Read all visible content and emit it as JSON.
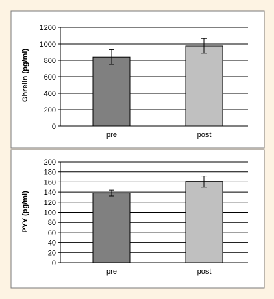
{
  "chart_data": [
    {
      "type": "bar",
      "categories": [
        "pre",
        "post"
      ],
      "values": [
        840,
        975
      ],
      "error": [
        90,
        90
      ],
      "ylabel": "Ghrelin (pg/ml)",
      "ylim": [
        0,
        1200
      ],
      "yticks": [
        0,
        200,
        400,
        600,
        800,
        1000,
        1200
      ],
      "bar_colors": [
        "#808080",
        "#c0c0c0"
      ],
      "grid": true
    },
    {
      "type": "bar",
      "categories": [
        "pre",
        "post"
      ],
      "values": [
        138,
        161
      ],
      "error": [
        6,
        11
      ],
      "ylabel": "PYY (pg/ml)",
      "ylim": [
        0,
        200
      ],
      "yticks": [
        0,
        20,
        40,
        60,
        80,
        100,
        120,
        140,
        160,
        180,
        200
      ],
      "bar_colors": [
        "#808080",
        "#c0c0c0"
      ],
      "grid": true
    }
  ]
}
